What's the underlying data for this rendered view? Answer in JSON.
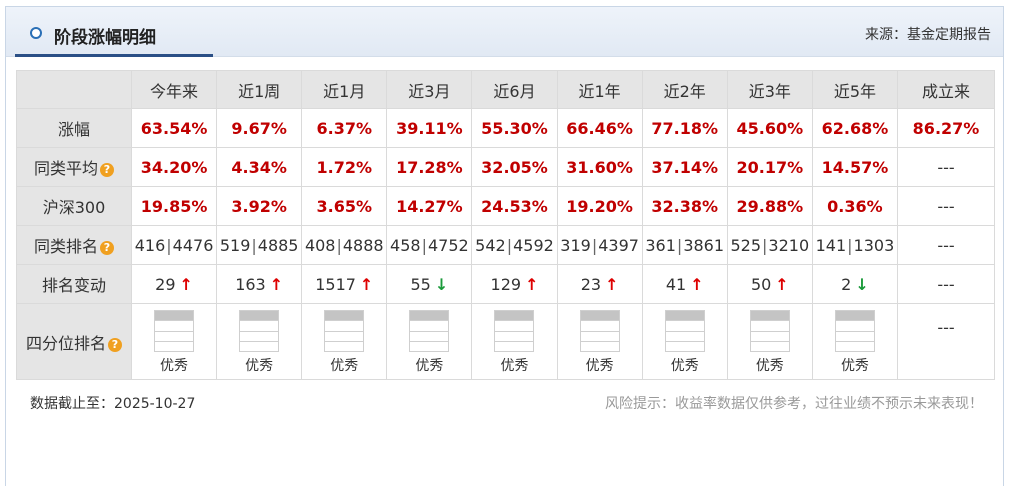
{
  "header": {
    "title": "阶段涨幅明细",
    "source": "来源：基金定期报告"
  },
  "table": {
    "columns": [
      "",
      "今年来",
      "近1周",
      "近1月",
      "近3月",
      "近6月",
      "近1年",
      "近2年",
      "近3年",
      "近5年",
      "成立来"
    ],
    "rows": {
      "zhangfu": {
        "label": "涨幅",
        "values": [
          "63.54%",
          "9.67%",
          "6.37%",
          "39.11%",
          "55.30%",
          "66.46%",
          "77.18%",
          "45.60%",
          "62.68%",
          "86.27%"
        ]
      },
      "tonglei_avg": {
        "label": "同类平均",
        "values": [
          "34.20%",
          "4.34%",
          "1.72%",
          "17.28%",
          "32.05%",
          "31.60%",
          "37.14%",
          "20.17%",
          "14.57%",
          "---"
        ]
      },
      "hs300": {
        "label": "沪深300",
        "values": [
          "19.85%",
          "3.92%",
          "3.65%",
          "14.27%",
          "24.53%",
          "19.20%",
          "32.38%",
          "29.88%",
          "0.36%",
          "---"
        ]
      },
      "rank": {
        "label": "同类排名",
        "values": [
          [
            "416",
            "4476"
          ],
          [
            "519",
            "4885"
          ],
          [
            "408",
            "4888"
          ],
          [
            "458",
            "4752"
          ],
          [
            "542",
            "4592"
          ],
          [
            "319",
            "4397"
          ],
          [
            "361",
            "3861"
          ],
          [
            "525",
            "3210"
          ],
          [
            "141",
            "1303"
          ]
        ],
        "last": "---"
      },
      "rank_change": {
        "label": "排名变动",
        "values": [
          {
            "n": "29",
            "dir": "up"
          },
          {
            "n": "163",
            "dir": "up"
          },
          {
            "n": "1517",
            "dir": "up"
          },
          {
            "n": "55",
            "dir": "down"
          },
          {
            "n": "129",
            "dir": "up"
          },
          {
            "n": "23",
            "dir": "up"
          },
          {
            "n": "41",
            "dir": "up"
          },
          {
            "n": "50",
            "dir": "up"
          },
          {
            "n": "2",
            "dir": "down"
          }
        ],
        "last": "---"
      },
      "quartile": {
        "label": "四分位排名",
        "values": [
          "优秀",
          "优秀",
          "优秀",
          "优秀",
          "优秀",
          "优秀",
          "优秀",
          "优秀",
          "优秀"
        ],
        "last": "---"
      }
    },
    "help_icon": "?",
    "arrow_up": "↑",
    "arrow_down": "↓",
    "rank_separator": "|"
  },
  "footer": {
    "date": "数据截止至：2025-10-27",
    "risk": "风险提示：收益率数据仅供参考，过往业绩不预示未来表现！"
  },
  "colors": {
    "positive": "#c00000",
    "up_arrow": "#dd0000",
    "down_arrow": "#1a9a3a",
    "accent": "#2a4f86"
  }
}
